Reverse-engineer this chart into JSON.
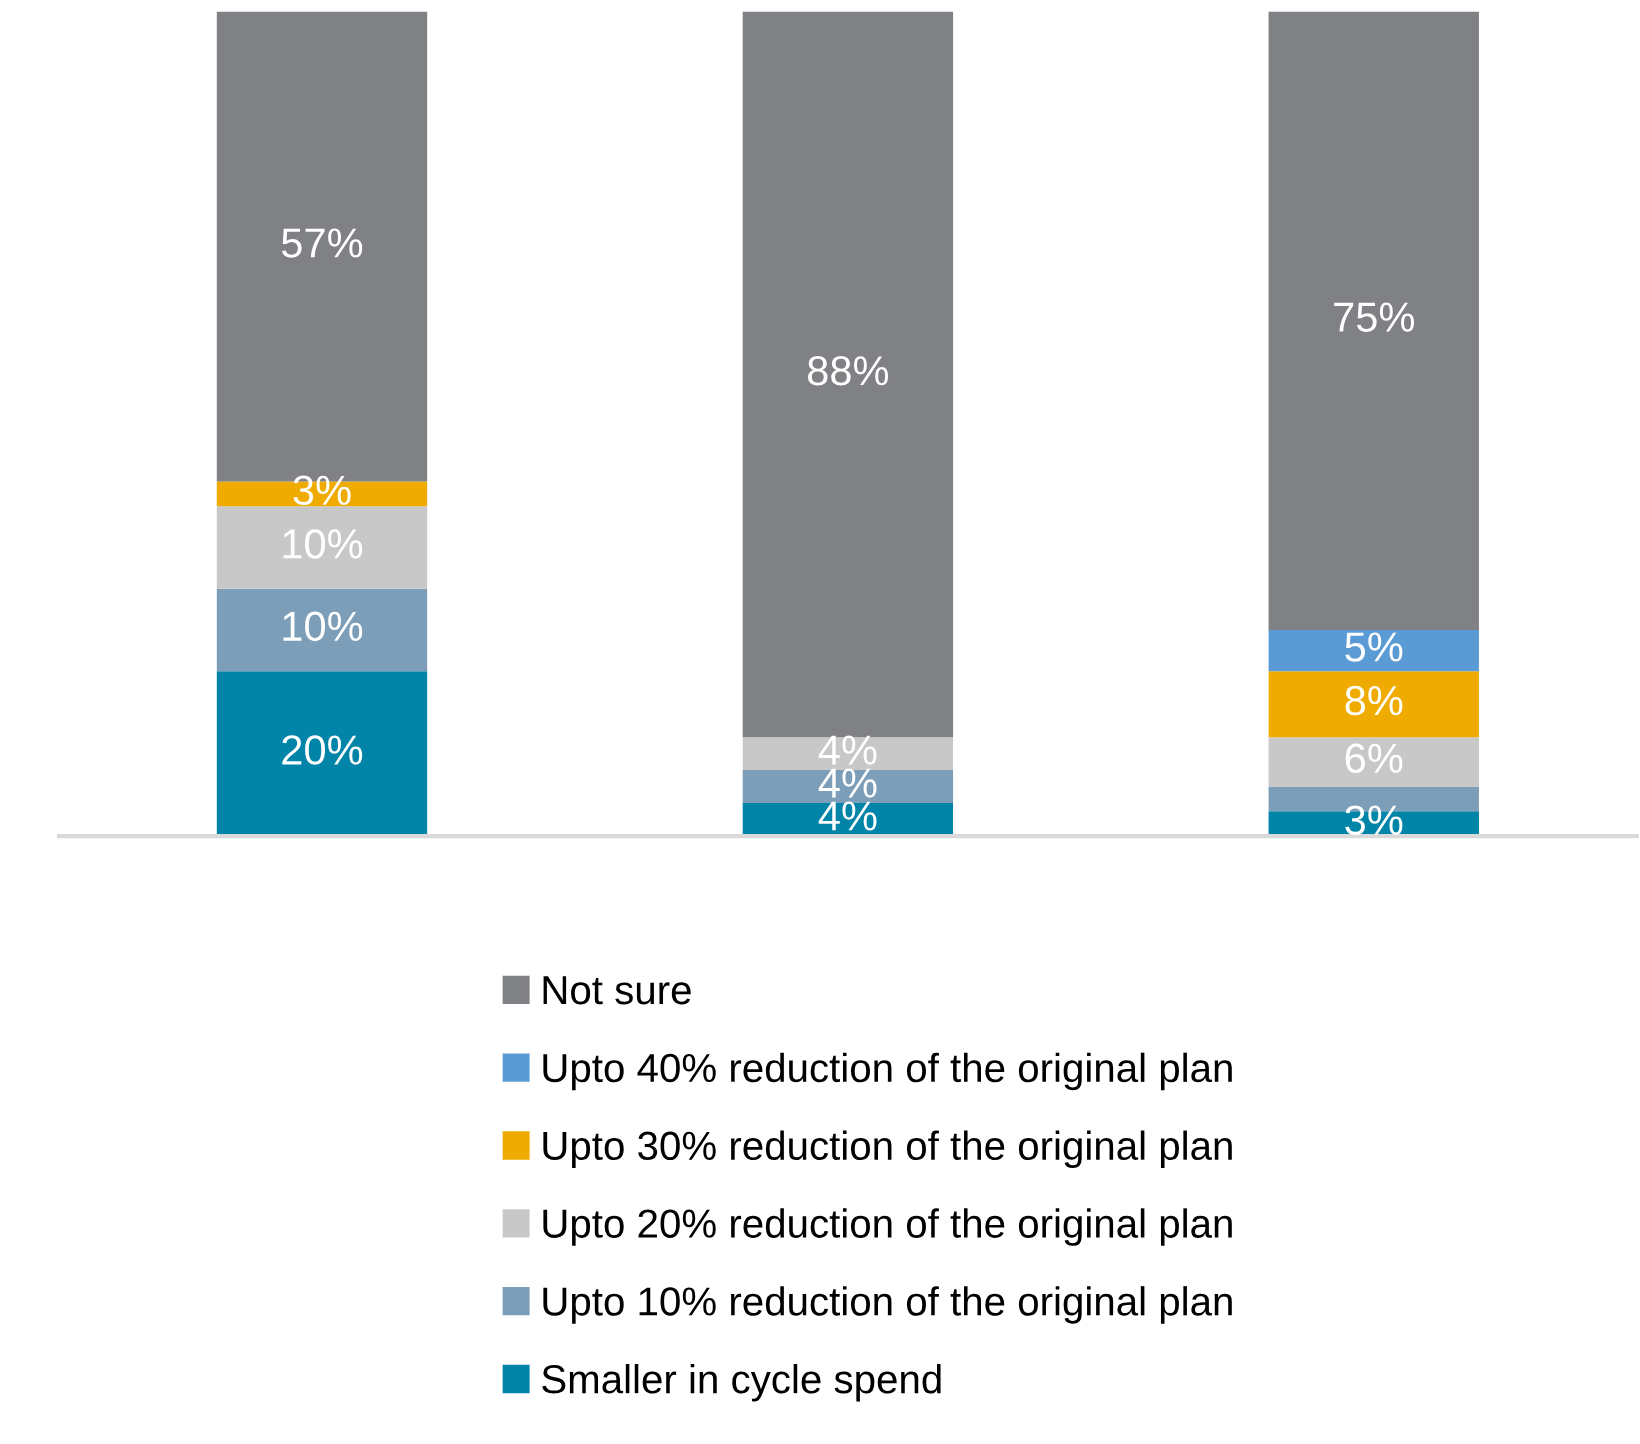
{
  "chart_data": {
    "type": "bar",
    "stacked": true,
    "categories": [
      null,
      null,
      null
    ],
    "ylim": [
      0,
      100
    ],
    "tick_labels": false,
    "grid": false,
    "legend": "bottom",
    "data_labels": false,
    "series": [
      {
        "name": "Smaller in cycle spend",
        "color": "#0085a8",
        "values": [
          20,
          4,
          3
        ],
        "value_labels": [
          "20%",
          "4%",
          "3%"
        ]
      },
      {
        "name": "Upto 10% reduction of the original plan",
        "color": "#7c9eb8",
        "values": [
          10,
          4,
          3
        ],
        "value_labels": [
          "10%",
          "4%",
          null
        ]
      },
      {
        "name": "Upto 20% reduction of the original plan",
        "color": "#c8c8c8",
        "values": [
          10,
          4,
          6
        ],
        "value_labels": [
          "10%",
          "4%",
          "6%"
        ]
      },
      {
        "name": "Upto 30% reduction of the original plan",
        "color": "#f0ab00",
        "values": [
          3,
          null,
          8
        ],
        "value_labels": [
          "3%",
          null,
          "8%"
        ]
      },
      {
        "name": "Upto 40% reduction of the original plan",
        "color": "#5b9bd5",
        "values": [
          null,
          null,
          5
        ],
        "value_labels": [
          null,
          null,
          "5%"
        ]
      },
      {
        "name": "Not sure",
        "color": "#808185",
        "values": [
          57,
          88,
          75
        ],
        "value_labels": [
          "57%",
          "88%",
          "75%"
        ]
      }
    ]
  }
}
